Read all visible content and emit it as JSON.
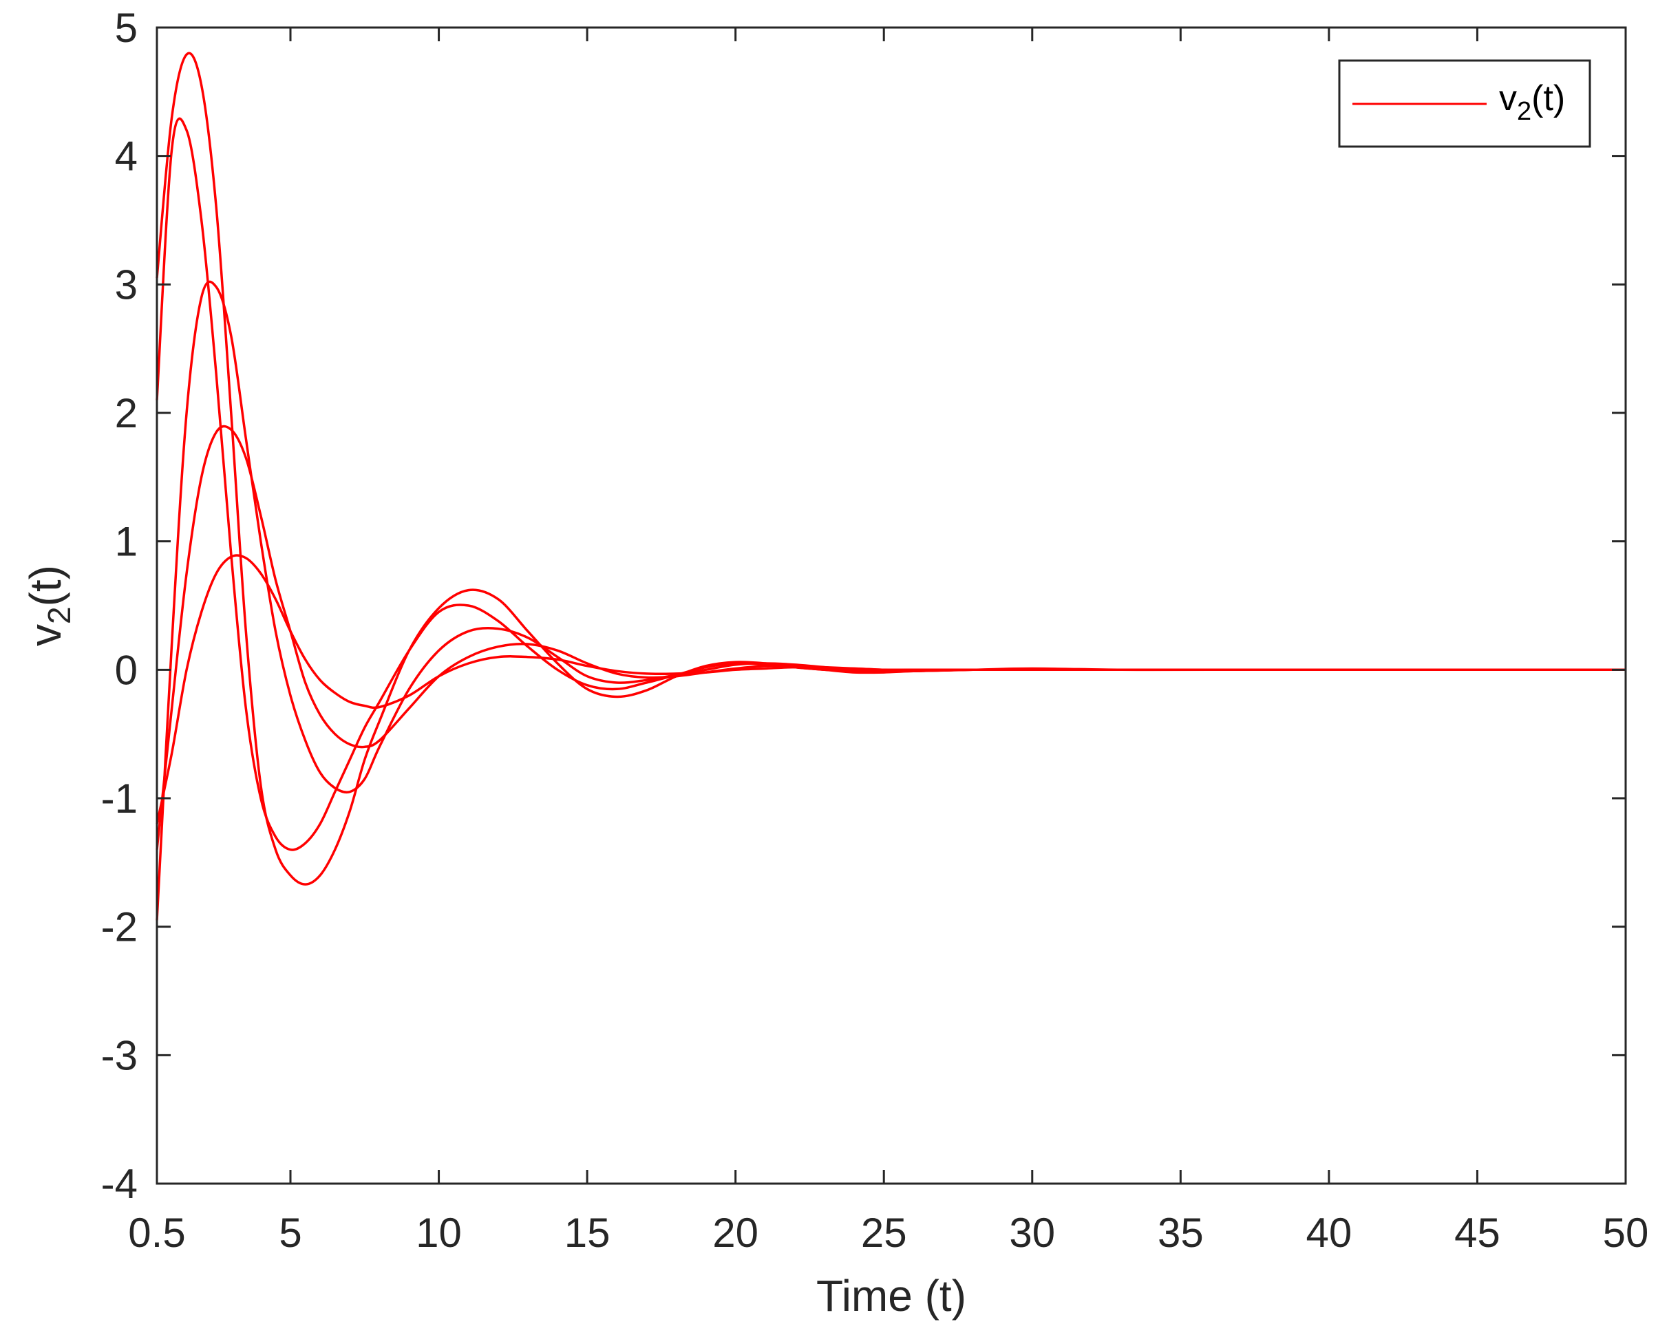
{
  "chart_data": {
    "type": "line",
    "xlabel": "Time (t)",
    "ylabel": {
      "base": "v",
      "sub": "2",
      "rest": "(t)"
    },
    "xlim": [
      0.5,
      50
    ],
    "ylim": [
      -4,
      5
    ],
    "xticks": [
      0.5,
      5,
      10,
      15,
      20,
      25,
      30,
      35,
      40,
      45,
      50
    ],
    "xtick_labels": [
      "0.5",
      "5",
      "10",
      "15",
      "20",
      "25",
      "30",
      "35",
      "40",
      "45",
      "50"
    ],
    "yticks": [
      -4,
      -3,
      -2,
      -1,
      0,
      1,
      2,
      3,
      4,
      5
    ],
    "ytick_labels": [
      "-4",
      "-3",
      "-2",
      "-1",
      "0",
      "1",
      "2",
      "3",
      "4",
      "5"
    ],
    "grid": false,
    "legend": {
      "placement": "top-right",
      "base": "v",
      "sub": "2",
      "rest": "(t)"
    },
    "color": "#ff0000",
    "series": [
      {
        "x": [
          0.5,
          1.0,
          1.5,
          2.0,
          2.5,
          3.0,
          3.5,
          4.0,
          4.5,
          5.0,
          5.5,
          6.0,
          6.5,
          7.0,
          7.5,
          8.0,
          9.0,
          10.0,
          11.0,
          12.0,
          13.0,
          14.0,
          15.0,
          16.0,
          17.0,
          18.0,
          19.0,
          20.0,
          21.0,
          22.0,
          23.0,
          24.0,
          25.0,
          26.0,
          28.0,
          30.0,
          33.0,
          36.0,
          40.0,
          45.0,
          50.0
        ],
        "values": [
          3.05,
          4.3,
          4.79,
          4.55,
          3.6,
          2.0,
          0.3,
          -0.9,
          -1.4,
          -1.6,
          -1.67,
          -1.6,
          -1.4,
          -1.1,
          -0.7,
          -0.4,
          0.15,
          0.48,
          0.62,
          0.55,
          0.3,
          0.05,
          -0.15,
          -0.21,
          -0.16,
          -0.05,
          0.03,
          0.06,
          0.05,
          0.02,
          0.0,
          -0.02,
          -0.02,
          -0.01,
          0.0,
          0.01,
          0.0,
          0.0,
          0.0,
          0.0,
          0.0
        ]
      },
      {
        "x": [
          0.5,
          1.0,
          1.5,
          2.0,
          2.5,
          3.0,
          3.5,
          4.0,
          4.5,
          5.0,
          5.5,
          6.0,
          6.5,
          7.0,
          7.5,
          8.0,
          9.0,
          10.0,
          11.0,
          12.0,
          13.0,
          14.0,
          15.0,
          16.0,
          17.0,
          18.0,
          19.0,
          20.0,
          21.0,
          22.0,
          23.0,
          24.0,
          25.0,
          26.0,
          28.0,
          30.0,
          33.0,
          36.0,
          40.0,
          45.0,
          50.0
        ],
        "values": [
          2.1,
          4.05,
          4.2,
          3.5,
          2.3,
          0.9,
          -0.3,
          -1.0,
          -1.3,
          -1.4,
          -1.35,
          -1.2,
          -0.95,
          -0.7,
          -0.45,
          -0.25,
          0.15,
          0.45,
          0.5,
          0.38,
          0.18,
          0.0,
          -0.12,
          -0.15,
          -0.1,
          -0.04,
          0.02,
          0.05,
          0.04,
          0.02,
          0.0,
          -0.01,
          -0.01,
          -0.01,
          0.0,
          0.0,
          0.0,
          0.0,
          0.0,
          0.0,
          0.0
        ]
      },
      {
        "x": [
          0.5,
          1.0,
          1.5,
          2.0,
          2.5,
          3.0,
          3.5,
          4.0,
          4.5,
          5.0,
          5.5,
          6.0,
          6.5,
          7.0,
          7.5,
          8.0,
          9.0,
          10.0,
          11.0,
          12.0,
          13.0,
          14.0,
          15.0,
          16.0,
          17.0,
          18.0,
          19.0,
          20.0,
          21.0,
          22.0,
          23.0,
          24.0,
          25.0,
          26.0,
          28.0,
          30.0,
          33.0,
          36.0,
          40.0,
          45.0,
          50.0
        ],
        "values": [
          -1.95,
          0.2,
          2.0,
          2.9,
          2.98,
          2.6,
          1.8,
          1.0,
          0.3,
          -0.2,
          -0.55,
          -0.8,
          -0.92,
          -0.95,
          -0.85,
          -0.6,
          -0.15,
          0.15,
          0.3,
          0.32,
          0.25,
          0.1,
          -0.05,
          -0.1,
          -0.08,
          -0.04,
          0.0,
          0.04,
          0.05,
          0.04,
          0.02,
          0.0,
          -0.01,
          -0.01,
          0.0,
          0.0,
          0.0,
          0.0,
          0.0,
          0.0,
          0.0
        ]
      },
      {
        "x": [
          0.5,
          1.0,
          1.5,
          2.0,
          2.5,
          3.0,
          3.5,
          4.0,
          4.5,
          5.0,
          5.5,
          6.0,
          6.5,
          7.0,
          7.5,
          8.0,
          9.0,
          10.0,
          11.0,
          12.0,
          13.0,
          14.0,
          15.0,
          16.0,
          17.0,
          18.0,
          19.0,
          20.0,
          21.0,
          22.0,
          23.0,
          24.0,
          25.0,
          26.0,
          28.0,
          30.0,
          33.0,
          36.0,
          40.0,
          45.0,
          50.0
        ],
        "values": [
          -1.4,
          -0.3,
          0.75,
          1.5,
          1.85,
          1.87,
          1.65,
          1.2,
          0.7,
          0.3,
          -0.1,
          -0.35,
          -0.5,
          -0.58,
          -0.6,
          -0.55,
          -0.3,
          -0.05,
          0.1,
          0.18,
          0.2,
          0.15,
          0.05,
          -0.03,
          -0.06,
          -0.05,
          -0.02,
          0.01,
          0.03,
          0.03,
          0.02,
          0.01,
          0.0,
          0.0,
          0.0,
          0.0,
          0.0,
          0.0,
          0.0,
          0.0,
          0.0
        ]
      },
      {
        "x": [
          0.5,
          1.0,
          1.5,
          2.0,
          2.5,
          3.0,
          3.5,
          4.0,
          4.5,
          5.0,
          5.5,
          6.0,
          6.5,
          7.0,
          7.5,
          8.0,
          9.0,
          10.0,
          11.0,
          12.0,
          13.0,
          14.0,
          15.0,
          16.0,
          17.0,
          18.0,
          19.0,
          20.0,
          21.0,
          22.0,
          23.0,
          24.0,
          25.0,
          26.0,
          28.0,
          30.0,
          33.0,
          36.0,
          40.0,
          45.0,
          50.0
        ],
        "values": [
          -1.2,
          -0.65,
          0.0,
          0.45,
          0.75,
          0.88,
          0.87,
          0.75,
          0.55,
          0.3,
          0.08,
          -0.08,
          -0.18,
          -0.25,
          -0.28,
          -0.29,
          -0.2,
          -0.05,
          0.05,
          0.1,
          0.1,
          0.08,
          0.03,
          -0.01,
          -0.03,
          -0.03,
          -0.02,
          0.0,
          0.01,
          0.02,
          0.01,
          0.01,
          0.0,
          0.0,
          0.0,
          0.0,
          0.0,
          0.0,
          0.0,
          0.0,
          0.0
        ]
      }
    ]
  }
}
